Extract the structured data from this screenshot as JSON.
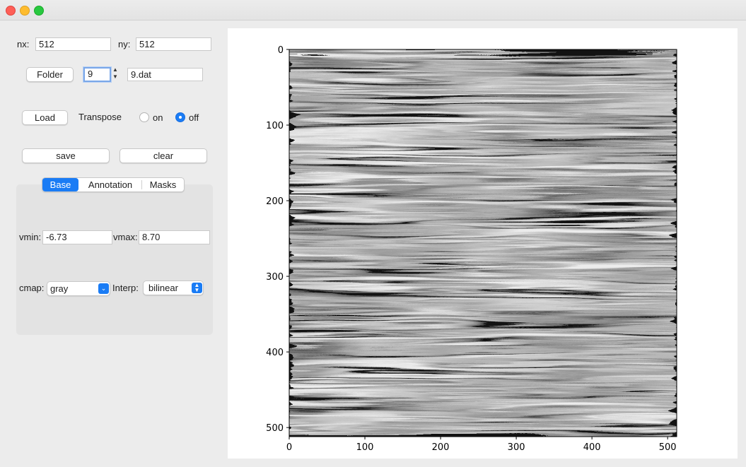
{
  "window": {
    "buttons": [
      "close",
      "minimize",
      "zoom"
    ]
  },
  "dims": {
    "nx_label": "nx:",
    "nx_value": "512",
    "ny_label": "ny:",
    "ny_value": "512"
  },
  "file": {
    "folder_button": "Folder",
    "index_value": "9",
    "filename_value": "9.dat"
  },
  "load": {
    "load_button": "Load",
    "transpose_label": "Transpose",
    "radio_on_label": "on",
    "radio_off_label": "off",
    "selected": "off"
  },
  "actions": {
    "save_button": "save",
    "clear_button": "clear"
  },
  "tabs": [
    {
      "label": "Base",
      "active": true
    },
    {
      "label": "Annotation",
      "active": false
    },
    {
      "label": "Masks",
      "active": false
    }
  ],
  "base": {
    "vmin_label": "vmin:",
    "vmin_value": "-6.73",
    "vmax_label": "vmax:",
    "vmax_value": "8.70",
    "cmap_label": "cmap:",
    "cmap_value": "gray",
    "interp_label": "Interp:",
    "interp_value": "bilinear"
  },
  "colors": {
    "accent": "#1a7cf5",
    "image_gray": "#808080"
  },
  "chart_data": {
    "type": "heatmap",
    "title": "",
    "xlabel": "",
    "ylabel": "",
    "xlim": [
      0,
      512
    ],
    "ylim": [
      512,
      0
    ],
    "x_ticks": [
      "0",
      "100",
      "200",
      "300",
      "400",
      "500"
    ],
    "y_ticks": [
      "0",
      "100",
      "200",
      "300",
      "400",
      "500"
    ],
    "colormap": "gray",
    "vmin": -6.73,
    "vmax": 8.7
  }
}
